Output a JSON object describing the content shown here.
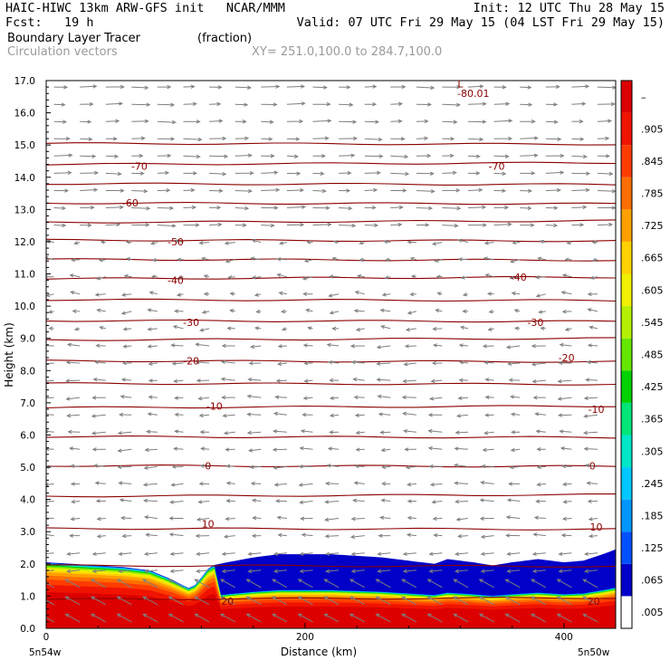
{
  "header": {
    "left_line1": "HAIC-HIWC 13km ARW-GFS init   NCAR/MMM",
    "left_line2": "Fcst:   19 h",
    "right_line1": "Init: 12 UTC Thu 28 May 15",
    "right_line2": "Valid: 07 UTC Fri 29 May 15 (04 LST Fri 29 May 15)",
    "field_name": "Boundary Layer Tracer",
    "field_units": "(fraction)",
    "vector_name": "Circulation vectors",
    "xy_range": "XY= 251.0,100.0 to 284.7,100.0"
  },
  "chart_data": {
    "type": "heatmap",
    "xlabel": "Distance (km)",
    "ylabel": "Height (km)",
    "xlim": [
      0,
      440
    ],
    "ylim": [
      0,
      17
    ],
    "x_ticks": [
      "0",
      "200",
      "400"
    ],
    "y_ticks": [
      "0.0",
      "1.0",
      "2.0",
      "3.0",
      "4.0",
      "5.0",
      "6.0",
      "7.0",
      "8.0",
      "9.0",
      "10.0",
      "11.0",
      "12.0",
      "13.0",
      "14.0",
      "15.0",
      "16.0",
      "17.0"
    ],
    "x_end_labels": {
      "left": "5n54w",
      "right": "5n50w"
    },
    "colorbar_levels": [
      ".005",
      ".065",
      ".125",
      ".185",
      ".245",
      ".305",
      ".365",
      ".425",
      ".485",
      ".545",
      ".605",
      ".665",
      ".725",
      ".785",
      ".845",
      ".905",
      "–"
    ],
    "colorbar_colors": [
      "#ffffff",
      "#0000c8",
      "#0050ff",
      "#0096ff",
      "#00c8ff",
      "#00e6c8",
      "#00e678",
      "#00d200",
      "#64e600",
      "#b4f000",
      "#f0f000",
      "#ffd200",
      "#ffa000",
      "#ff6e00",
      "#ff3c00",
      "#f01400",
      "#dc0000"
    ],
    "isotherm_levels": [
      -80,
      -70,
      -60,
      -50,
      -40,
      -30,
      -20,
      -10,
      0,
      10,
      20
    ],
    "contour_labels": [
      {
        "text": "-80.01",
        "x": 330,
        "y": 16.6
      },
      {
        "text": "L",
        "x": 320,
        "y": 16.9
      },
      {
        "text": "-70",
        "x": 72,
        "y": 14.35
      },
      {
        "text": "-70",
        "x": 348,
        "y": 14.35
      },
      {
        "text": "-60",
        "x": 65,
        "y": 13.2
      },
      {
        "text": "-50",
        "x": 100,
        "y": 12.0
      },
      {
        "text": "-40",
        "x": 100,
        "y": 10.8
      },
      {
        "text": "-40",
        "x": 365,
        "y": 10.9
      },
      {
        "text": "-30",
        "x": 112,
        "y": 9.5
      },
      {
        "text": "-30",
        "x": 378,
        "y": 9.5
      },
      {
        "text": "-20",
        "x": 112,
        "y": 8.3
      },
      {
        "text": "-20",
        "x": 402,
        "y": 8.4
      },
      {
        "text": "-10",
        "x": 130,
        "y": 6.9
      },
      {
        "text": "-10",
        "x": 425,
        "y": 6.8
      },
      {
        "text": "0",
        "x": 125,
        "y": 5.05
      },
      {
        "text": "0",
        "x": 422,
        "y": 5.05
      },
      {
        "text": "10",
        "x": 125,
        "y": 3.25
      },
      {
        "text": "10",
        "x": 425,
        "y": 3.15
      },
      {
        "text": "20",
        "x": 140,
        "y": 0.85
      },
      {
        "text": "20",
        "x": 423,
        "y": 0.85
      }
    ],
    "tracer_top_km": [
      [
        0,
        2.05
      ],
      [
        20,
        2.0
      ],
      [
        40,
        1.95
      ],
      [
        60,
        1.9
      ],
      [
        80,
        1.8
      ],
      [
        95,
        1.55
      ],
      [
        110,
        1.25
      ],
      [
        118,
        1.4
      ],
      [
        122,
        1.75
      ],
      [
        128,
        1.95
      ],
      [
        140,
        2.05
      ],
      [
        160,
        2.2
      ],
      [
        180,
        2.3
      ],
      [
        220,
        2.3
      ],
      [
        260,
        2.2
      ],
      [
        280,
        2.1
      ],
      [
        300,
        2.0
      ],
      [
        310,
        2.15
      ],
      [
        330,
        2.05
      ],
      [
        345,
        1.95
      ],
      [
        360,
        2.05
      ],
      [
        380,
        2.15
      ],
      [
        400,
        2.05
      ],
      [
        415,
        2.1
      ],
      [
        430,
        2.3
      ],
      [
        440,
        2.45
      ]
    ]
  }
}
